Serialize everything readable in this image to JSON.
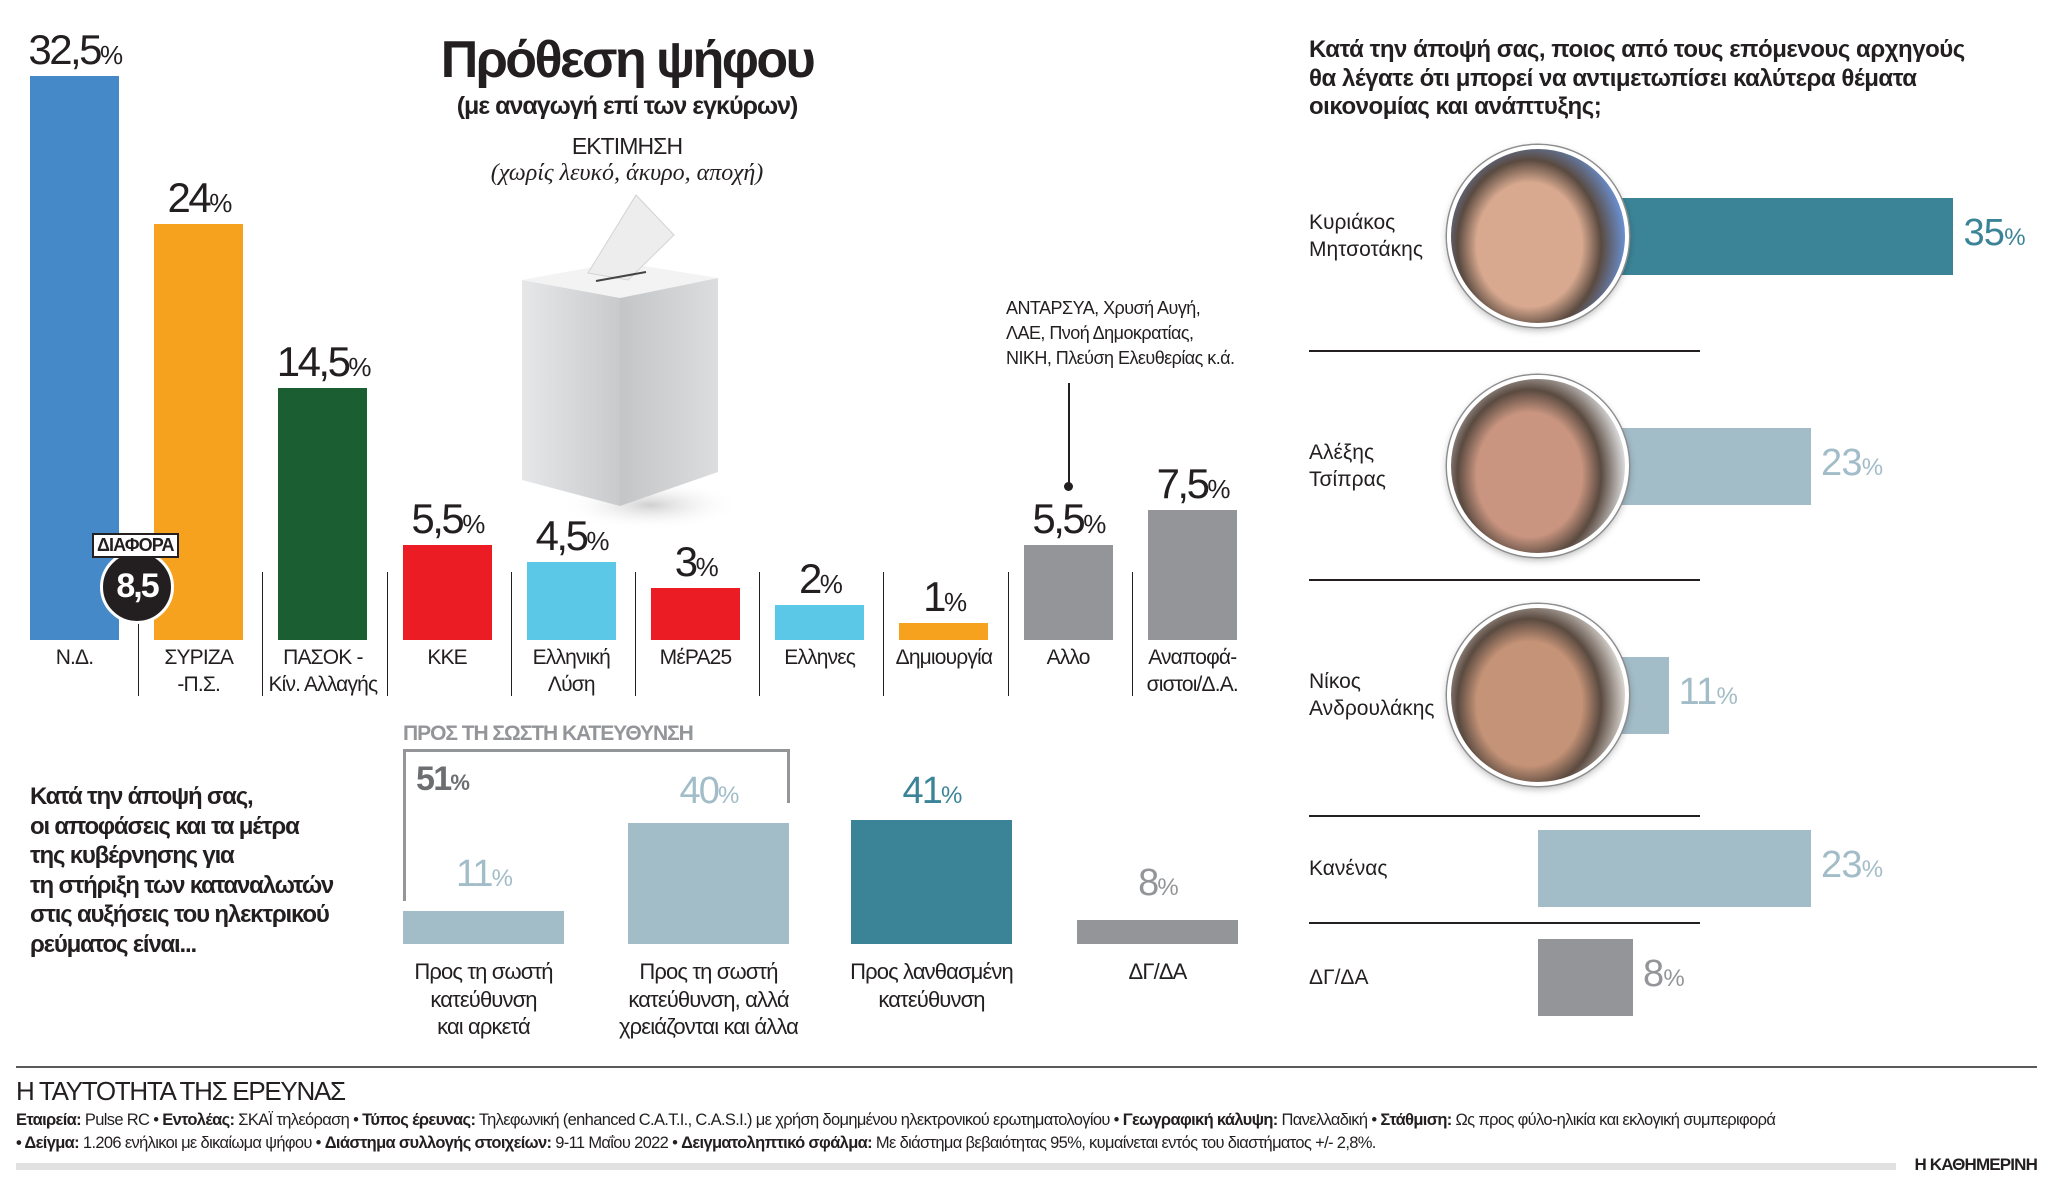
{
  "colors": {
    "nd": "#4589c8",
    "syriza": "#f7a21f",
    "pasok": "#1a5e32",
    "red": "#ec1c24",
    "lightblue": "#5bc8e8",
    "orange": "#f7a21f",
    "grey": "#939598",
    "teal": "#3b8497",
    "paleblue": "#a2bcc8"
  },
  "chart_data": [
    {
      "type": "bar",
      "title": "Πρόθεση ψήφου",
      "subtitle": "(με αναγωγή επί των εγκύρων)",
      "estimate_label": "ΕΚΤΙΜΗΣΗ",
      "estimate_note": "(χωρίς λευκό, άκυρο, αποχή)",
      "unit": "%",
      "categories": [
        "Ν.Δ.",
        "ΣΥΡΙΖΑ\n-Π.Σ.",
        "ΠΑΣΟΚ -\nΚίν. Αλλαγής",
        "ΚΚΕ",
        "Ελληνική\nΛύση",
        "ΜέΡΑ25",
        "Ελληνες",
        "Δημιουργία",
        "Αλλο",
        "Αναποφά-\nσιστοι/Δ.Α."
      ],
      "values": [
        32.5,
        24,
        14.5,
        5.5,
        4.5,
        3,
        2,
        1,
        5.5,
        7.5
      ],
      "value_labels": [
        "32,5",
        "24",
        "14,5",
        "5,5",
        "4,5",
        "3",
        "2",
        "1",
        "5,5",
        "7,5"
      ],
      "bar_colors": [
        "#4589c8",
        "#f7a21f",
        "#1a5e32",
        "#ec1c24",
        "#5bc8e8",
        "#ec1c24",
        "#5bc8e8",
        "#f7a21f",
        "#939598",
        "#939598"
      ],
      "difference": {
        "label": "ΔΙΑΦΟΡΑ",
        "value": "8,5"
      },
      "other_note": [
        "ΑΝΤΑΡΣΥΑ, Χρυσή Αυγή,",
        "ΛΑΕ, Πνοή Δημοκρατίας,",
        "ΝΙΚΗ, Πλεύση Ελευθερίας κ.ά."
      ]
    },
    {
      "type": "bar",
      "question": [
        "Κατά την άποψή σας,",
        "οι αποφάσεις και τα μέτρα",
        "της κυβέρνησης για",
        "τη στήριξη των καταναλωτών",
        "στις αυξήσεις του ηλεκτρικού",
        "ρεύματος είναι..."
      ],
      "group_label": "ΠΡΟΣ ΤΗ ΣΩΣΤΗ ΚΑΤΕΥΘΥΝΣΗ",
      "group_total": "51",
      "unit": "%",
      "categories": [
        "Προς τη σωστή\nκατεύθυνση\nκαι αρκετά",
        "Προς τη σωστή\nκατεύθυνση, αλλά\nχρειάζονται και άλλα",
        "Προς λανθασμένη\nκατεύθυνση",
        "ΔΓ/ΔΑ"
      ],
      "values": [
        11,
        40,
        41,
        8
      ],
      "value_labels": [
        "11",
        "40",
        "41",
        "8"
      ],
      "bar_colors": [
        "#a2bcc8",
        "#a2bcc8",
        "#3b8497",
        "#939598"
      ]
    },
    {
      "type": "bar",
      "orientation": "horizontal",
      "question": [
        "Κατά την άποψή σας, ποιος από τους επόμενους αρχηγούς",
        "θα λέγατε ότι μπορεί να αντιμετωπίσει καλύτερα θέματα",
        "οικονομίας και ανάπτυξης;"
      ],
      "unit": "%",
      "categories": [
        "Κυριάκος\nΜητσοτάκης",
        "Αλέξης\nΤσίπρας",
        "Νίκος\nΑνδρουλάκης",
        "Κανένας",
        "ΔΓ/ΔΑ"
      ],
      "values": [
        35,
        23,
        11,
        23,
        8
      ],
      "value_labels": [
        "35",
        "23",
        "11",
        "23",
        "8"
      ],
      "bar_colors": [
        "#3b8497",
        "#a2bcc8",
        "#a2bcc8",
        "#a2bcc8",
        "#939598"
      ],
      "photo": [
        true,
        true,
        true,
        false,
        false
      ]
    }
  ],
  "footer": {
    "title": "Η ΤΑΥΤΟΤΗΤΑ ΤΗΣ ΕΡΕΥΝΑΣ",
    "line1": [
      {
        "k": "Εταιρεία:",
        "v": " Pulse RC • "
      },
      {
        "k": "Εντολέας:",
        "v": " ΣΚΑΪ τηλεόραση • "
      },
      {
        "k": "Τύπος έρευνας:",
        "v": " Τηλεφωνική (enhanced C.A.T.I., C.A.S.I.) με χρήση δομημένου ηλεκτρονικού ερωτηματολογίου • "
      },
      {
        "k": "Γεωγραφική κάλυψη:",
        "v": " Πανελλαδική • "
      },
      {
        "k": "Στάθμιση:",
        "v": " Ως προς φύλο-ηλικία και εκλογική συμπεριφορά"
      }
    ],
    "line2": [
      {
        "k": "• Δείγμα:",
        "v": " 1.206 ενήλικοι με δικαίωμα ψήφου • "
      },
      {
        "k": "Διάστημα συλλογής στοιχείων:",
        "v": " 9-11 Μαΐου 2022 • "
      },
      {
        "k": "Δειγματοληπτικό σφάλμα:",
        "v": " Με διάστημα βεβαιότητας 95%, κυμαίνεται εντός του διαστήματος +/- 2,8%."
      }
    ],
    "brand": "Η ΚΑΘΗΜΕΡΙΝΗ"
  }
}
